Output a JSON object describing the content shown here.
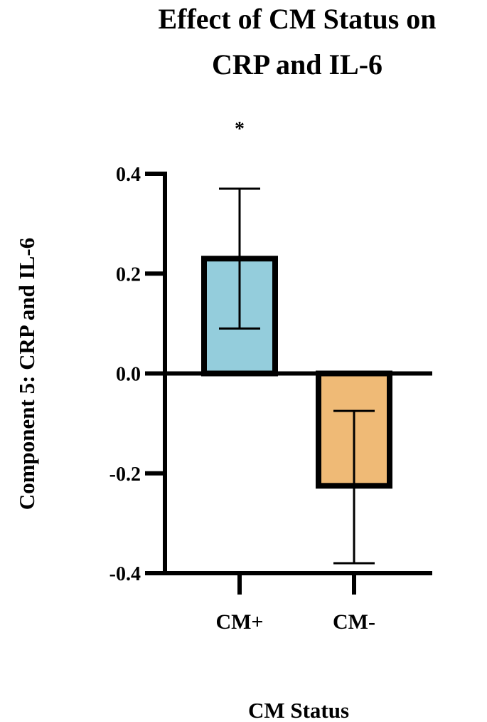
{
  "chart_data": {
    "type": "bar",
    "title": "Effect of CM Status on CRP and IL-6",
    "title_lines": [
      "Effect of CM Status on",
      "CRP and IL-6"
    ],
    "xlabel": "CM Status",
    "ylabel": "Component 5: CRP and IL-6",
    "categories": [
      "CM+",
      "CM-"
    ],
    "values": [
      0.23,
      -0.225
    ],
    "error_low": [
      0.09,
      -0.38
    ],
    "error_high": [
      0.37,
      -0.075
    ],
    "bar_colors": [
      "#94cddc",
      "#efba76"
    ],
    "ylim": [
      -0.4,
      0.4
    ],
    "yticks": [
      -0.4,
      -0.2,
      0.0,
      0.2,
      0.4
    ],
    "ytick_labels": [
      "-0.4",
      "-0.2",
      "0.0",
      "0.2",
      "0.4"
    ],
    "annotations": [
      {
        "category": "CM+",
        "text": "*"
      }
    ],
    "grid": false,
    "legend": "none"
  }
}
